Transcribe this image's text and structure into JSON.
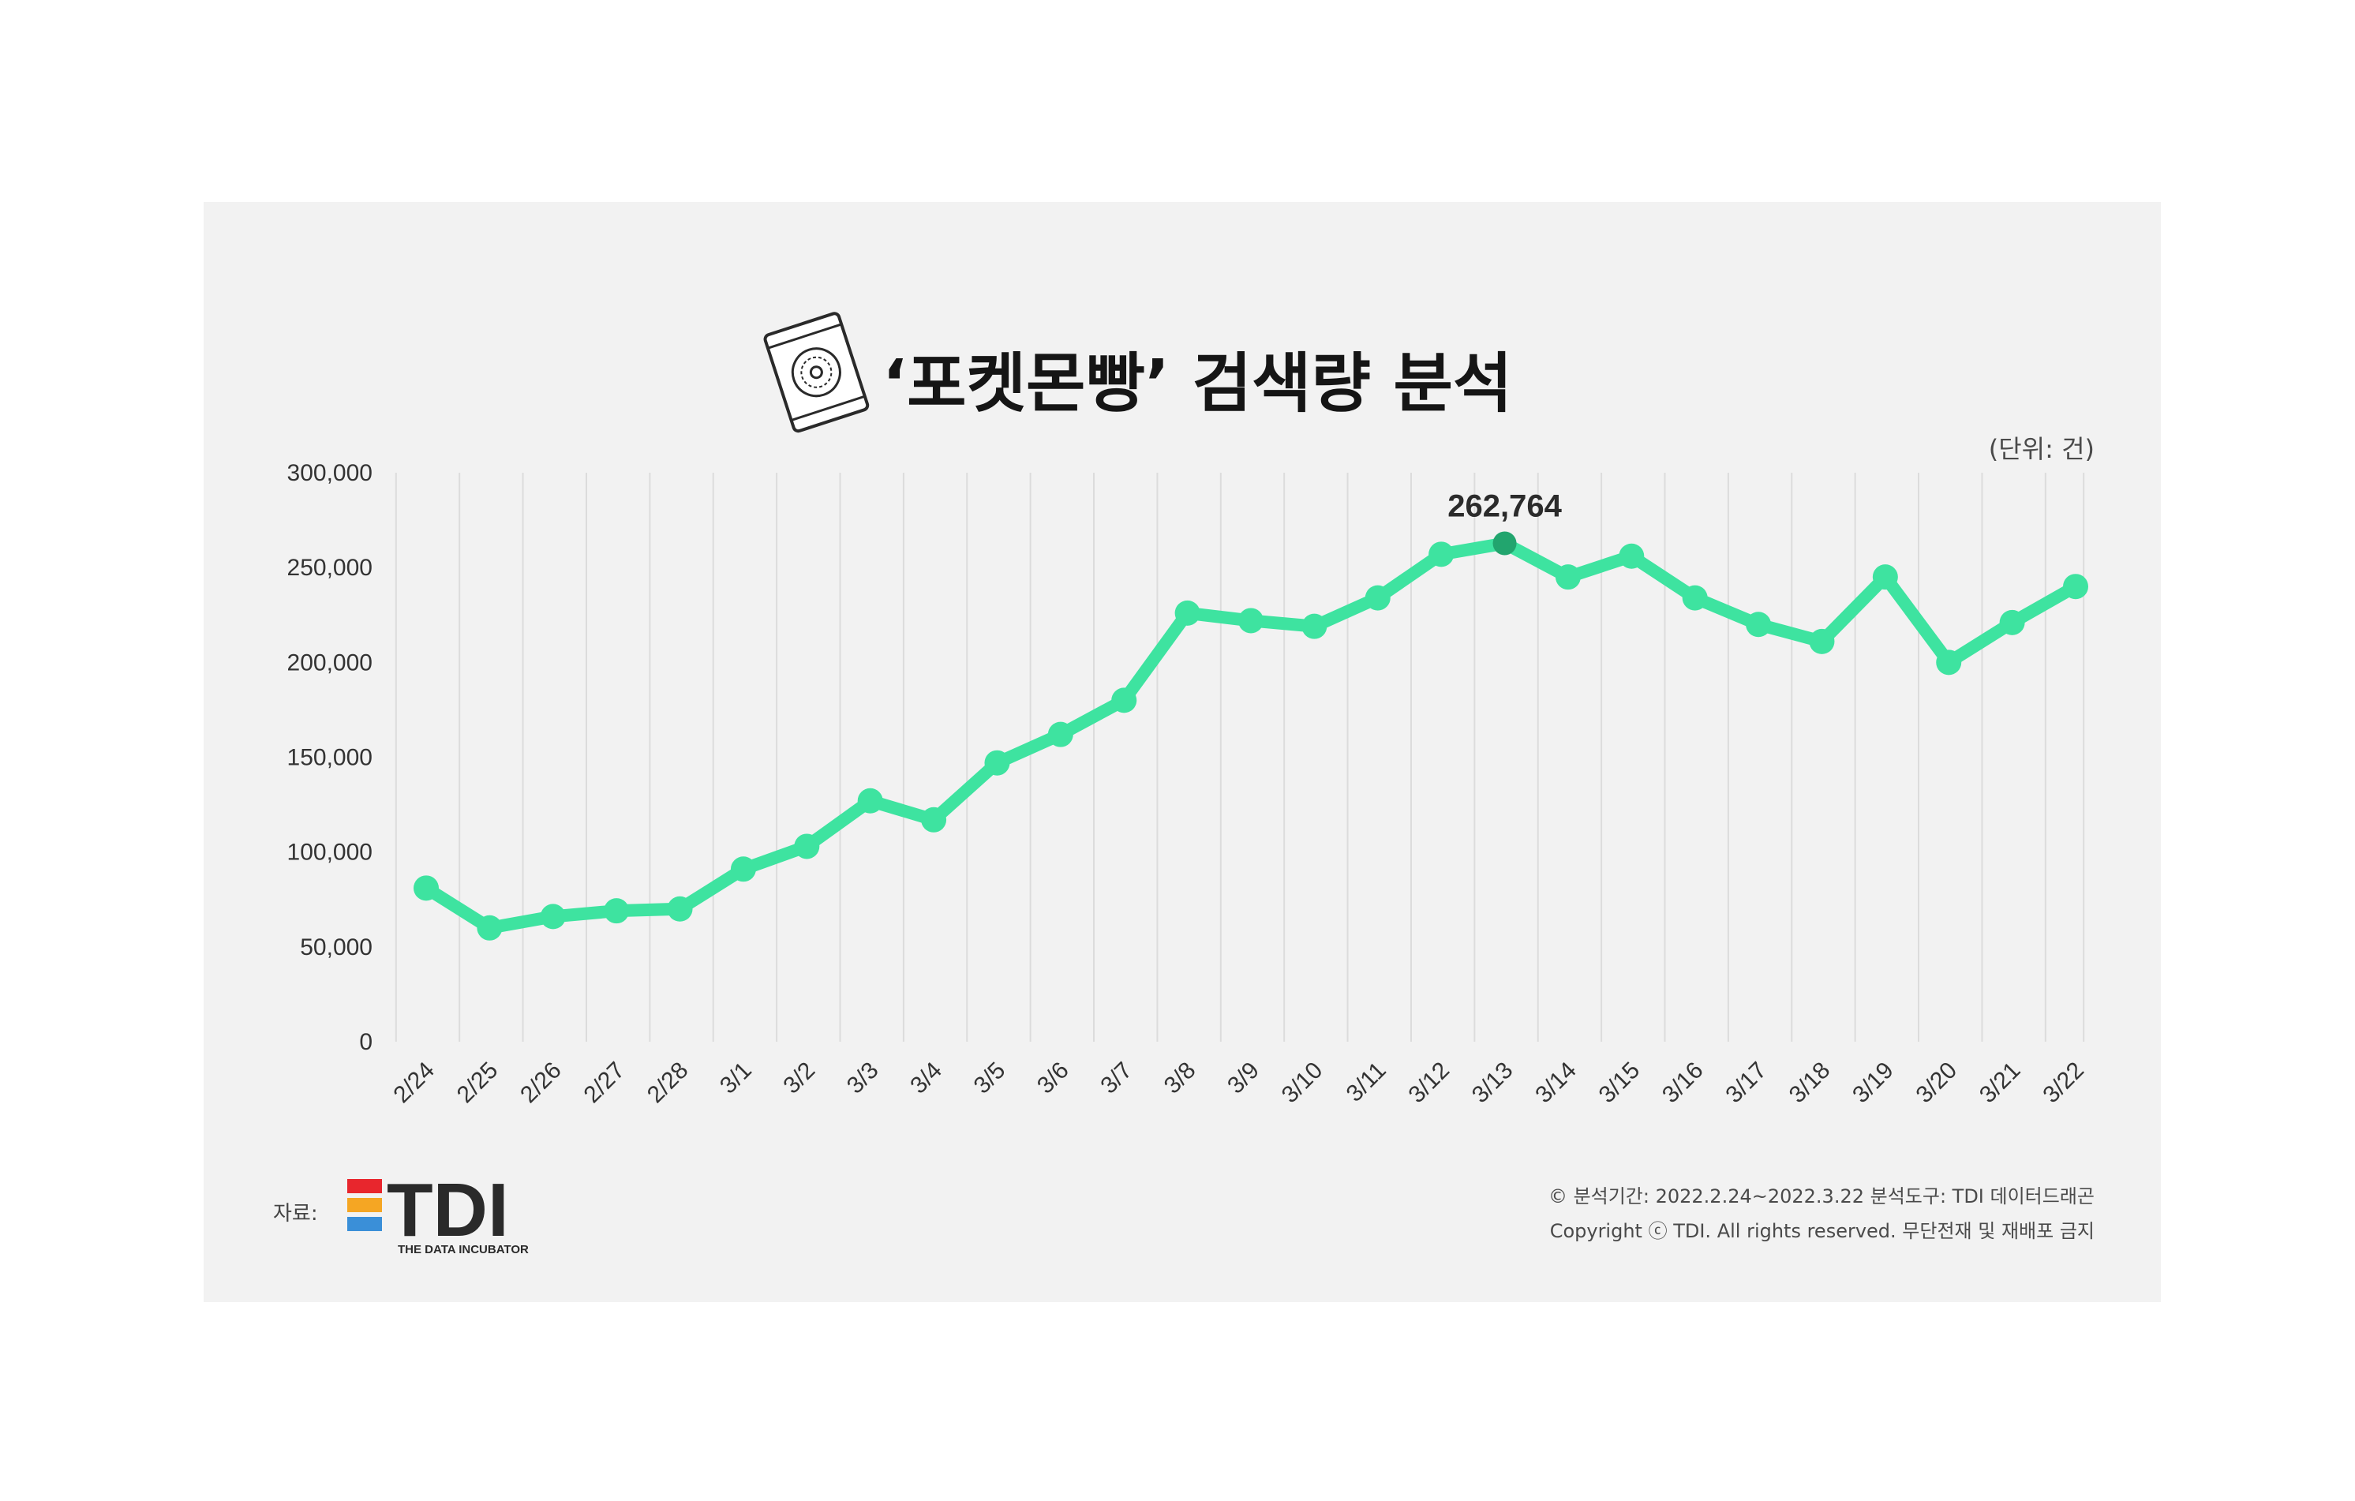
{
  "chart_data": {
    "type": "line",
    "title": "‘포켓몬빵’ 검색량 분석",
    "unit_label": "(단위: 건)",
    "xlabel": "",
    "ylabel": "",
    "ylim": [
      0,
      300000
    ],
    "yticks": [
      "0",
      "50,000",
      "100,000",
      "150,000",
      "200,000",
      "250,000",
      "300,000"
    ],
    "categories": [
      "2/24",
      "2/25",
      "2/26",
      "2/27",
      "2/28",
      "3/1",
      "3/2",
      "3/3",
      "3/4",
      "3/5",
      "3/6",
      "3/7",
      "3/8",
      "3/9",
      "3/10",
      "3/11",
      "3/12",
      "3/13",
      "3/14",
      "3/15",
      "3/16",
      "3/17",
      "3/18",
      "3/19",
      "3/20",
      "3/21",
      "3/22"
    ],
    "series": [
      {
        "values": [
          81000,
          60000,
          66000,
          69000,
          70000,
          91000,
          103000,
          127000,
          117000,
          147000,
          162000,
          180000,
          226000,
          222000,
          219000,
          234000,
          257000,
          262764,
          245000,
          256000,
          234000,
          220000,
          211000,
          245000,
          200000,
          221000,
          240000
        ]
      }
    ],
    "peak_annotation": {
      "category": "3/13",
      "label": "262,764"
    },
    "grid": {
      "vertical": true,
      "horizontal": false
    },
    "colors": {
      "line": "#3ee3a0",
      "peak_marker": "#22a56e",
      "grid": "#dcdcdc",
      "background": "#f2f2f2"
    }
  },
  "source": {
    "label": "자료:",
    "logo_text": "TDI",
    "logo_subtitle": "THE DATA INCUBATOR",
    "logo_colors": [
      "#e8262d",
      "#f5a623",
      "#3a8fd8"
    ]
  },
  "footer": {
    "line1": "© 분석기간: 2022.2.24~2022.3.22  분석도구: TDI 데이터드래곤",
    "line2": "Copyright ⓒ TDI. All rights reserved. 무단전재 및 재배포 금지"
  },
  "icons": {
    "title_icon": "pokemon-bread-bag-icon"
  }
}
